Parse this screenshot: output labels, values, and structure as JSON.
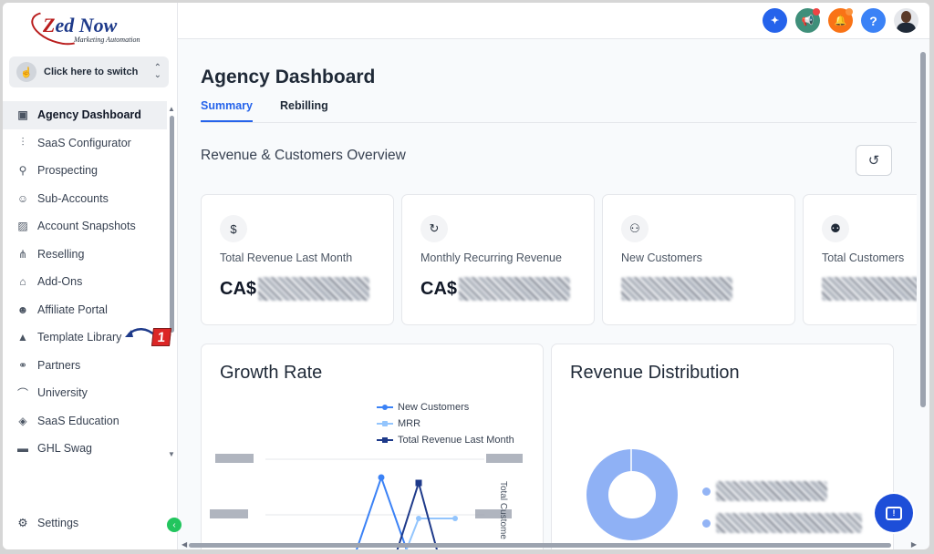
{
  "logo": {
    "brand_prefix": "Z",
    "brand_rest": "ed Now",
    "tagline": "Marketing Automation"
  },
  "switcher": {
    "label": "Click here to switch"
  },
  "sidebar": {
    "items": [
      {
        "label": "Agency Dashboard",
        "icon": "dashboard-icon",
        "glyph": "▣",
        "active": true
      },
      {
        "label": "SaaS Configurator",
        "icon": "bar-chart-icon",
        "glyph": "⫶",
        "active": false
      },
      {
        "label": "Prospecting",
        "icon": "user-search-icon",
        "glyph": "⚲",
        "active": false
      },
      {
        "label": "Sub-Accounts",
        "icon": "user-icon",
        "glyph": "☺",
        "active": false
      },
      {
        "label": "Account Snapshots",
        "icon": "snapshot-icon",
        "glyph": "▨",
        "active": false
      },
      {
        "label": "Reselling",
        "icon": "network-icon",
        "glyph": "⋔",
        "active": false
      },
      {
        "label": "Add-Ons",
        "icon": "lock-icon",
        "glyph": "⌂",
        "active": false
      },
      {
        "label": "Affiliate Portal",
        "icon": "users-icon",
        "glyph": "☻",
        "active": false
      },
      {
        "label": "Template Library",
        "icon": "shapes-icon",
        "glyph": "▲",
        "active": false
      },
      {
        "label": "Partners",
        "icon": "handshake-icon",
        "glyph": "⚭",
        "active": false
      },
      {
        "label": "University",
        "icon": "graduation-cap-icon",
        "glyph": "⌒",
        "active": false
      },
      {
        "label": "SaaS Education",
        "icon": "cube-icon",
        "glyph": "◈",
        "active": false
      },
      {
        "label": "GHL Swag",
        "icon": "store-icon",
        "glyph": "▬",
        "active": false
      }
    ],
    "settings_label": "Settings"
  },
  "annotation": {
    "number": "1"
  },
  "topbar": {
    "icons": [
      {
        "name": "satellite-icon",
        "glyph": "✦",
        "color": "#2563eb"
      },
      {
        "name": "megaphone-icon",
        "glyph": "📢",
        "color": "#3f8f7a",
        "dot": "#ef4444"
      },
      {
        "name": "bell-icon",
        "glyph": "🔔",
        "color": "#f97316",
        "dot": "#fb923c"
      },
      {
        "name": "help-icon",
        "glyph": "?",
        "color": "#3b82f6"
      }
    ]
  },
  "page": {
    "title": "Agency Dashboard",
    "tabs": [
      {
        "label": "Summary",
        "active": true
      },
      {
        "label": "Rebilling",
        "active": false
      }
    ],
    "section_title": "Revenue & Customers Overview"
  },
  "cards": [
    {
      "label": "Total Revenue Last Month",
      "prefix": "CA$",
      "icon": "dollar-icon",
      "glyph": "$"
    },
    {
      "label": "Monthly Recurring Revenue",
      "prefix": "CA$",
      "icon": "recurring-icon",
      "glyph": "↻"
    },
    {
      "label": "New Customers",
      "prefix": "",
      "icon": "user-plus-icon",
      "glyph": "⚇"
    },
    {
      "label": "Total Customers",
      "prefix": "",
      "icon": "users-icon",
      "glyph": "⚉"
    }
  ],
  "growth": {
    "title": "Growth Rate",
    "right_axis_label": "Total Custome",
    "legend": [
      {
        "label": "New Customers",
        "color": "#3b82f6",
        "marker": "circle"
      },
      {
        "label": "MRR",
        "color": "#93c5fd",
        "marker": "diamond"
      },
      {
        "label": "Total Revenue Last Month",
        "color": "#1e3a8a",
        "marker": "square"
      }
    ]
  },
  "distribution": {
    "title": "Revenue Distribution",
    "ring_color": "#8fb1f5"
  },
  "colors": {
    "accent": "#2563eb"
  }
}
